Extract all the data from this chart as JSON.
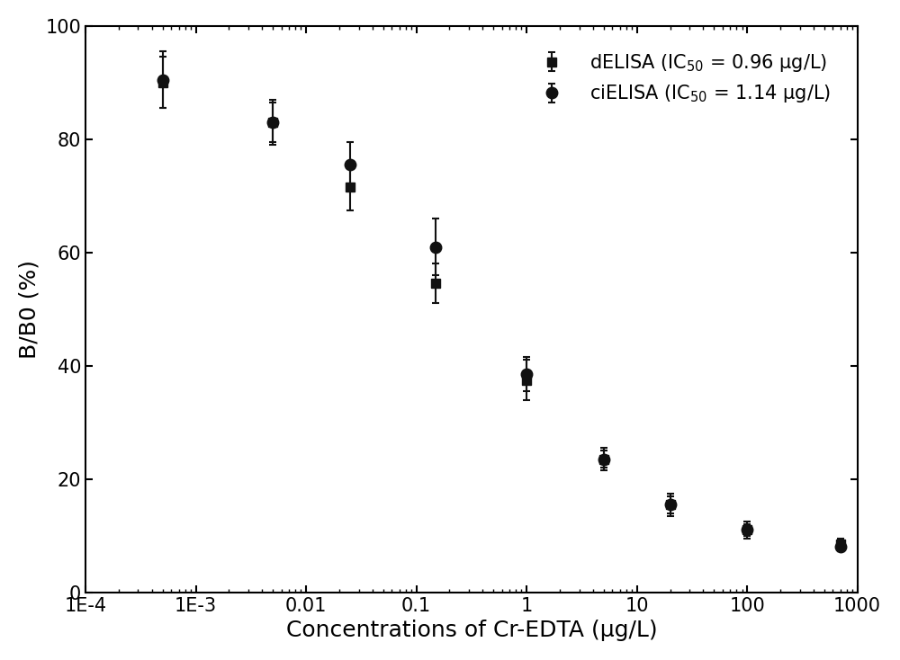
{
  "title": "",
  "xlabel": "Concentrations of Cr-EDTA (μg/L)",
  "ylabel": "B/B0 (%)",
  "xlim": [
    0.0001,
    1000
  ],
  "ylim": [
    0,
    100
  ],
  "yticks": [
    0,
    20,
    40,
    60,
    80,
    100
  ],
  "dELISA": {
    "x": [
      0.0005,
      0.005,
      0.025,
      0.15,
      1.0,
      5.0,
      20.0,
      100.0,
      700.0
    ],
    "y": [
      90.0,
      83.0,
      71.5,
      54.5,
      37.5,
      23.5,
      15.5,
      11.0,
      8.5
    ],
    "yerr": [
      4.5,
      3.5,
      4.0,
      3.5,
      3.5,
      2.0,
      2.0,
      1.5,
      1.0
    ],
    "ic50": 0.96,
    "label": "dELISA (IC$_{50}$ = 0.96 μg/L)",
    "marker": "s",
    "color": "#111111"
  },
  "ciELISA": {
    "x": [
      0.0005,
      0.005,
      0.025,
      0.15,
      1.0,
      5.0,
      20.0,
      100.0,
      700.0
    ],
    "y": [
      90.5,
      83.0,
      75.5,
      61.0,
      38.5,
      23.5,
      15.5,
      11.0,
      8.0
    ],
    "yerr": [
      5.0,
      4.0,
      4.0,
      5.0,
      3.0,
      1.5,
      1.5,
      1.0,
      0.8
    ],
    "ic50": 1.14,
    "label": "ciELISA (IC$_{50}$ = 1.14 μg/L)",
    "marker": "o",
    "color": "#111111"
  },
  "line_color": "#111111",
  "background_color": "#ffffff",
  "legend_loc": "upper right",
  "tick_fontsize": 15,
  "label_fontsize": 18
}
